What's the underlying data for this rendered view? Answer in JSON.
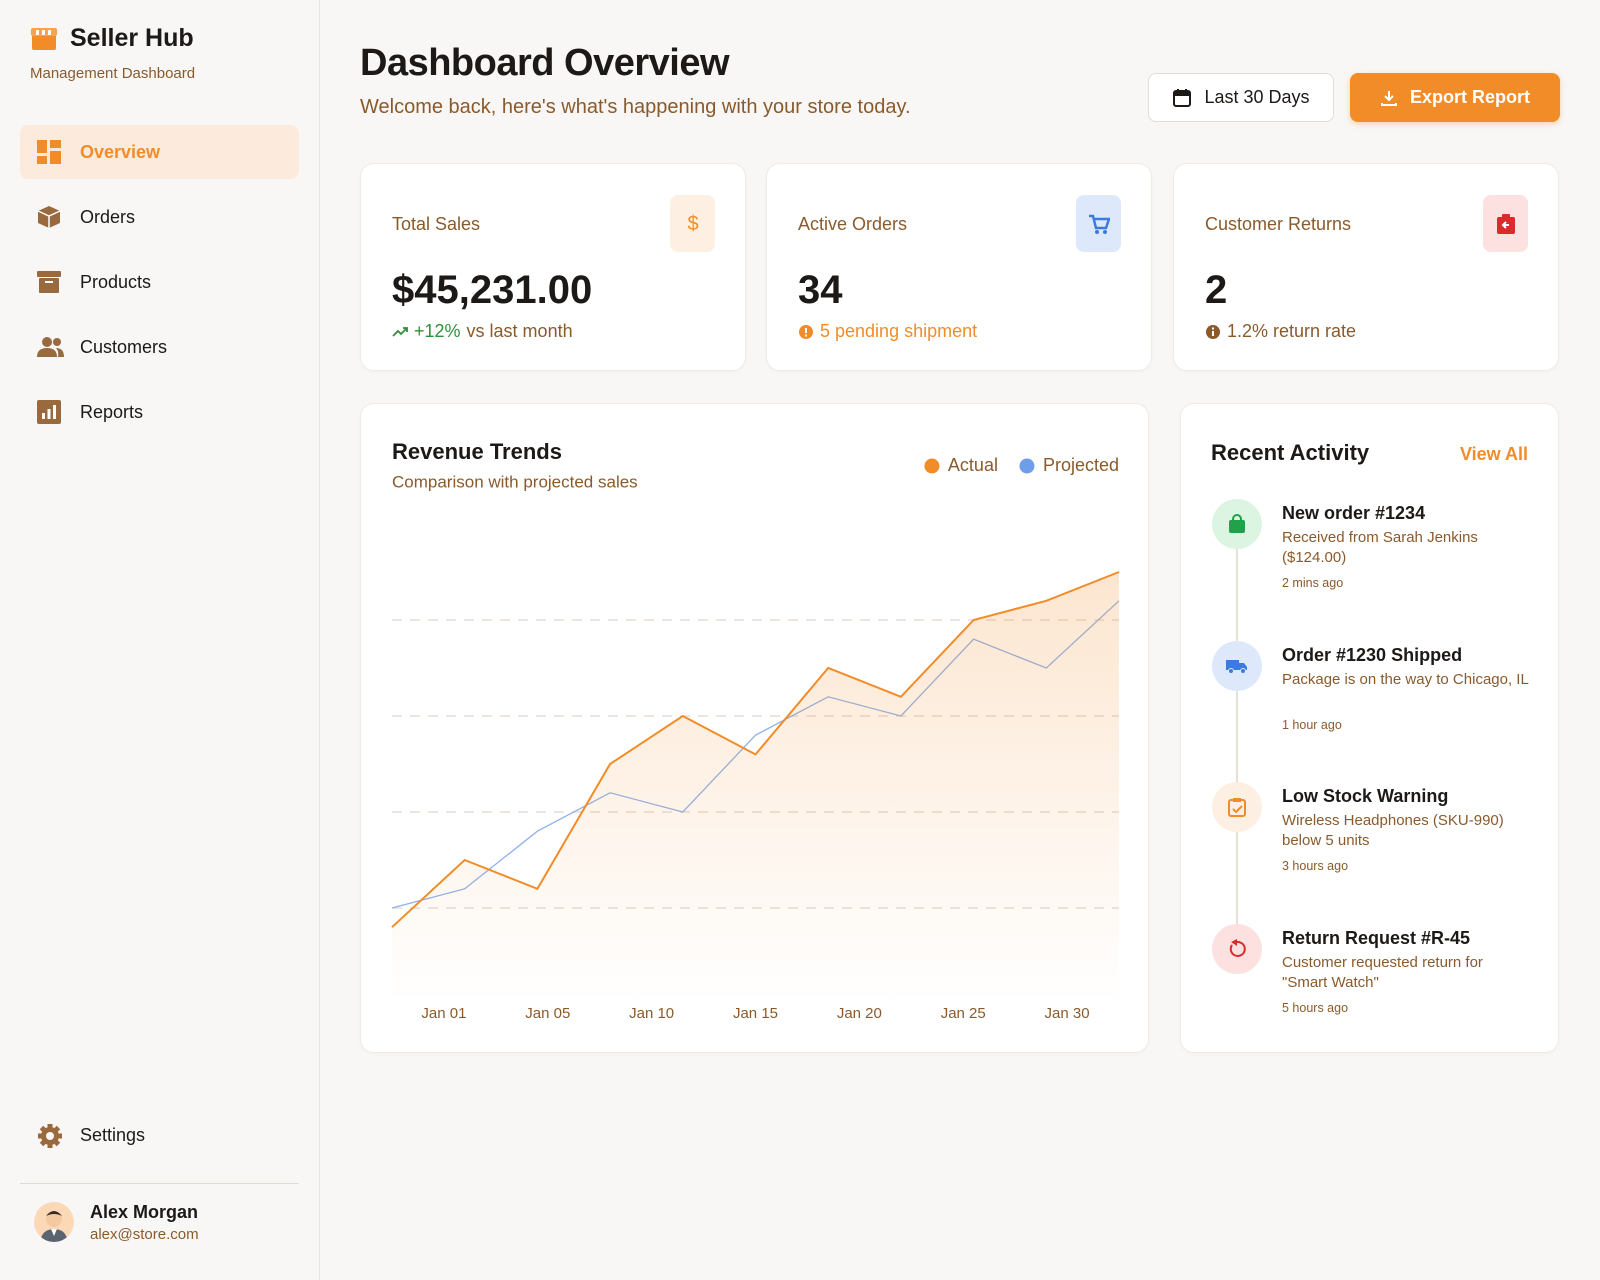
{
  "sidebar": {
    "brand": "Seller Hub",
    "subtitle": "Management Dashboard",
    "nav": [
      "Overview",
      "Orders",
      "Products",
      "Customers",
      "Reports"
    ],
    "settings": "Settings",
    "user": {
      "name": "Alex Morgan",
      "email": "alex@store.com"
    }
  },
  "header": {
    "title": "Dashboard Overview",
    "subtitle": "Welcome back, here's what's happening with your store today.",
    "date_button": "Last 30 Days",
    "export_button": "Export Report"
  },
  "stats": [
    {
      "label": "Total Sales",
      "value": "$45,231.00",
      "change": "+12%",
      "note": "vs last month"
    },
    {
      "label": "Active Orders",
      "value": "34",
      "note": "5 pending shipment"
    },
    {
      "label": "Customer Returns",
      "value": "2",
      "note": "1.2% return rate"
    }
  ],
  "chart_data": {
    "type": "line",
    "title": "Revenue Trends",
    "subtitle": "Comparison with projected sales",
    "x_labels": [
      "Jan 01",
      "Jan 05",
      "Jan 10",
      "Jan 15",
      "Jan 20",
      "Jan 25",
      "Jan 30"
    ],
    "series": [
      {
        "name": "Actual",
        "color": "#f28c28",
        "values": [
          16,
          30,
          24,
          50,
          60,
          52,
          70,
          64,
          80,
          84,
          90
        ]
      },
      {
        "name": "Projected",
        "color": "#8fb2ea",
        "values": [
          20,
          24,
          36,
          44,
          40,
          56,
          64,
          60,
          76,
          70,
          84
        ]
      }
    ],
    "ylim": [
      0,
      100
    ],
    "yticks": [
      20,
      40,
      60,
      80
    ],
    "grid": true
  },
  "activity": {
    "title": "Recent Activity",
    "link": "View All",
    "items": [
      {
        "title": "New order #1234",
        "desc": "Received from Sarah Jenkins ($124.00)",
        "time": "2 mins ago"
      },
      {
        "title": "Order #1230 Shipped",
        "desc": "Package is on the way to Chicago, IL",
        "time": "1 hour ago"
      },
      {
        "title": "Low Stock Warning",
        "desc": "Wireless Headphones (SKU-990) below 5 units",
        "time": "3 hours ago"
      },
      {
        "title": "Return Request #R-45",
        "desc": "Customer requested return for \"Smart Watch\"",
        "time": "5 hours ago"
      }
    ]
  }
}
